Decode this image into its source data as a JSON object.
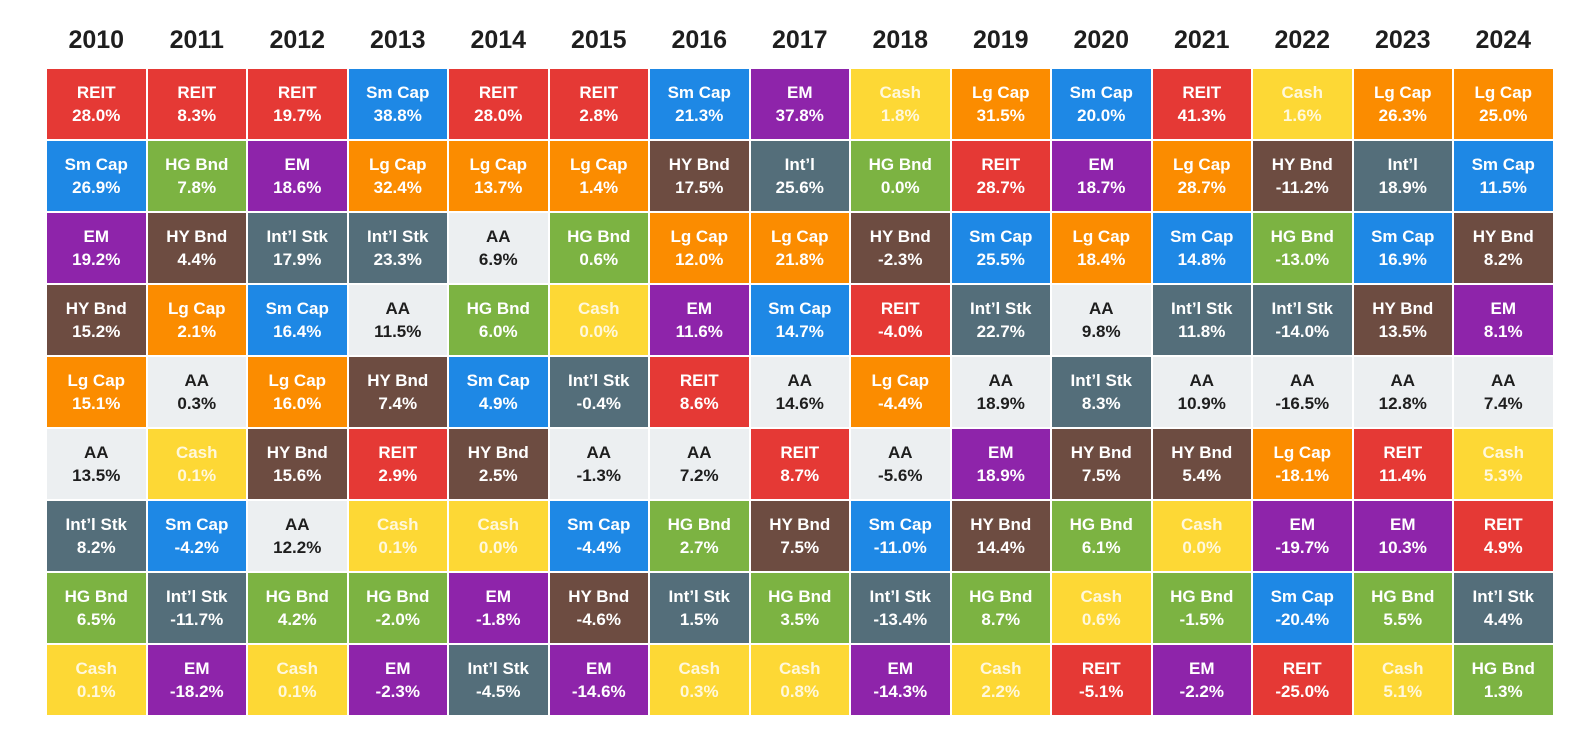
{
  "chart_data": {
    "type": "table",
    "title": "",
    "years": [
      "2010",
      "2011",
      "2012",
      "2013",
      "2014",
      "2015",
      "2016",
      "2017",
      "2018",
      "2019",
      "2020",
      "2021",
      "2022",
      "2023",
      "2024"
    ],
    "colors": {
      "REIT": "#e53935",
      "Sm Cap": "#1e88e5",
      "EM": "#8e24aa",
      "HY Bnd": "#6d4c41",
      "Lg Cap": "#fb8c00",
      "AA": "#eceff1",
      "Int'l Stk": "#546e7a",
      "Int'l": "#546e7a",
      "HG Bnd": "#7cb342",
      "Cash": "#fdd835"
    },
    "light_text_assets": [
      "Cash"
    ],
    "dark_text_assets": [
      "AA"
    ],
    "columns": [
      [
        {
          "asset": "REIT",
          "label": "REIT",
          "value": "28.0%"
        },
        {
          "asset": "Sm Cap",
          "label": "Sm Cap",
          "value": "26.9%"
        },
        {
          "asset": "EM",
          "label": "EM",
          "value": "19.2%"
        },
        {
          "asset": "HY Bnd",
          "label": "HY Bnd",
          "value": "15.2%"
        },
        {
          "asset": "Lg Cap",
          "label": "Lg Cap",
          "value": "15.1%"
        },
        {
          "asset": "AA",
          "label": "AA",
          "value": "13.5%"
        },
        {
          "asset": "Int'l Stk",
          "label": "Int’l Stk",
          "value": "8.2%"
        },
        {
          "asset": "HG Bnd",
          "label": "HG Bnd",
          "value": "6.5%"
        },
        {
          "asset": "Cash",
          "label": "Cash",
          "value": "0.1%"
        }
      ],
      [
        {
          "asset": "REIT",
          "label": "REIT",
          "value": "8.3%"
        },
        {
          "asset": "HG Bnd",
          "label": "HG Bnd",
          "value": "7.8%"
        },
        {
          "asset": "HY Bnd",
          "label": "HY Bnd",
          "value": "4.4%"
        },
        {
          "asset": "Lg Cap",
          "label": "Lg Cap",
          "value": "2.1%"
        },
        {
          "asset": "AA",
          "label": "AA",
          "value": "0.3%"
        },
        {
          "asset": "Cash",
          "label": "Cash",
          "value": "0.1%"
        },
        {
          "asset": "Sm Cap",
          "label": "Sm Cap",
          "value": "-4.2%"
        },
        {
          "asset": "Int'l Stk",
          "label": "Int’l Stk",
          "value": "-11.7%"
        },
        {
          "asset": "EM",
          "label": "EM",
          "value": "-18.2%"
        }
      ],
      [
        {
          "asset": "REIT",
          "label": "REIT",
          "value": "19.7%"
        },
        {
          "asset": "EM",
          "label": "EM",
          "value": "18.6%"
        },
        {
          "asset": "Int'l Stk",
          "label": "Int’l Stk",
          "value": "17.9%"
        },
        {
          "asset": "Sm Cap",
          "label": "Sm Cap",
          "value": "16.4%"
        },
        {
          "asset": "Lg Cap",
          "label": "Lg Cap",
          "value": "16.0%"
        },
        {
          "asset": "HY Bnd",
          "label": "HY Bnd",
          "value": "15.6%"
        },
        {
          "asset": "AA",
          "label": "AA",
          "value": "12.2%"
        },
        {
          "asset": "HG Bnd",
          "label": "HG Bnd",
          "value": "4.2%"
        },
        {
          "asset": "Cash",
          "label": "Cash",
          "value": "0.1%"
        }
      ],
      [
        {
          "asset": "Sm Cap",
          "label": "Sm Cap",
          "value": "38.8%"
        },
        {
          "asset": "Lg Cap",
          "label": "Lg Cap",
          "value": "32.4%"
        },
        {
          "asset": "Int'l Stk",
          "label": "Int’l Stk",
          "value": "23.3%"
        },
        {
          "asset": "AA",
          "label": "AA",
          "value": "11.5%"
        },
        {
          "asset": "HY Bnd",
          "label": "HY Bnd",
          "value": "7.4%"
        },
        {
          "asset": "REIT",
          "label": "REIT",
          "value": "2.9%"
        },
        {
          "asset": "Cash",
          "label": "Cash",
          "value": "0.1%"
        },
        {
          "asset": "HG Bnd",
          "label": "HG Bnd",
          "value": "-2.0%"
        },
        {
          "asset": "EM",
          "label": "EM",
          "value": "-2.3%"
        }
      ],
      [
        {
          "asset": "REIT",
          "label": "REIT",
          "value": "28.0%"
        },
        {
          "asset": "Lg Cap",
          "label": "Lg Cap",
          "value": "13.7%"
        },
        {
          "asset": "AA",
          "label": "AA",
          "value": "6.9%"
        },
        {
          "asset": "HG Bnd",
          "label": "HG Bnd",
          "value": "6.0%"
        },
        {
          "asset": "Sm Cap",
          "label": "Sm Cap",
          "value": "4.9%"
        },
        {
          "asset": "HY Bnd",
          "label": "HY Bnd",
          "value": "2.5%"
        },
        {
          "asset": "Cash",
          "label": "Cash",
          "value": "0.0%"
        },
        {
          "asset": "EM",
          "label": "EM",
          "value": "-1.8%"
        },
        {
          "asset": "Int'l Stk",
          "label": "Int’l Stk",
          "value": "-4.5%"
        }
      ],
      [
        {
          "asset": "REIT",
          "label": "REIT",
          "value": "2.8%"
        },
        {
          "asset": "Lg Cap",
          "label": "Lg Cap",
          "value": "1.4%"
        },
        {
          "asset": "HG Bnd",
          "label": "HG Bnd",
          "value": "0.6%"
        },
        {
          "asset": "Cash",
          "label": "Cash",
          "value": "0.0%"
        },
        {
          "asset": "Int'l Stk",
          "label": "Int’l Stk",
          "value": "-0.4%"
        },
        {
          "asset": "AA",
          "label": "AA",
          "value": "-1.3%"
        },
        {
          "asset": "Sm Cap",
          "label": "Sm Cap",
          "value": "-4.4%"
        },
        {
          "asset": "HY Bnd",
          "label": "HY Bnd",
          "value": "-4.6%"
        },
        {
          "asset": "EM",
          "label": "EM",
          "value": "-14.6%"
        }
      ],
      [
        {
          "asset": "Sm Cap",
          "label": "Sm Cap",
          "value": "21.3%"
        },
        {
          "asset": "HY Bnd",
          "label": "HY Bnd",
          "value": "17.5%"
        },
        {
          "asset": "Lg Cap",
          "label": "Lg Cap",
          "value": "12.0%"
        },
        {
          "asset": "EM",
          "label": "EM",
          "value": "11.6%"
        },
        {
          "asset": "REIT",
          "label": "REIT",
          "value": "8.6%"
        },
        {
          "asset": "AA",
          "label": "AA",
          "value": "7.2%"
        },
        {
          "asset": "HG Bnd",
          "label": "HG Bnd",
          "value": "2.7%"
        },
        {
          "asset": "Int'l Stk",
          "label": "Int’l Stk",
          "value": "1.5%"
        },
        {
          "asset": "Cash",
          "label": "Cash",
          "value": "0.3%"
        }
      ],
      [
        {
          "asset": "EM",
          "label": "EM",
          "value": "37.8%"
        },
        {
          "asset": "Int'l",
          "label": "Int’l",
          "value": "25.6%"
        },
        {
          "asset": "Lg Cap",
          "label": "Lg Cap",
          "value": "21.8%"
        },
        {
          "asset": "Sm Cap",
          "label": "Sm Cap",
          "value": "14.7%"
        },
        {
          "asset": "AA",
          "label": "AA",
          "value": "14.6%"
        },
        {
          "asset": "REIT",
          "label": "REIT",
          "value": "8.7%"
        },
        {
          "asset": "HY Bnd",
          "label": "HY Bnd",
          "value": "7.5%"
        },
        {
          "asset": "HG Bnd",
          "label": "HG Bnd",
          "value": "3.5%"
        },
        {
          "asset": "Cash",
          "label": "Cash",
          "value": "0.8%"
        }
      ],
      [
        {
          "asset": "Cash",
          "label": "Cash",
          "value": "1.8%"
        },
        {
          "asset": "HG Bnd",
          "label": "HG Bnd",
          "value": "0.0%"
        },
        {
          "asset": "HY Bnd",
          "label": "HY Bnd",
          "value": "-2.3%"
        },
        {
          "asset": "REIT",
          "label": "REIT",
          "value": "-4.0%"
        },
        {
          "asset": "Lg Cap",
          "label": "Lg Cap",
          "value": "-4.4%"
        },
        {
          "asset": "AA",
          "label": "AA",
          "value": "-5.6%"
        },
        {
          "asset": "Sm Cap",
          "label": "Sm Cap",
          "value": "-11.0%"
        },
        {
          "asset": "Int'l Stk",
          "label": "Int’l Stk",
          "value": "-13.4%"
        },
        {
          "asset": "EM",
          "label": "EM",
          "value": "-14.3%"
        }
      ],
      [
        {
          "asset": "Lg Cap",
          "label": "Lg Cap",
          "value": "31.5%"
        },
        {
          "asset": "REIT",
          "label": "REIT",
          "value": "28.7%"
        },
        {
          "asset": "Sm Cap",
          "label": "Sm Cap",
          "value": "25.5%"
        },
        {
          "asset": "Int'l Stk",
          "label": "Int’l Stk",
          "value": "22.7%"
        },
        {
          "asset": "AA",
          "label": "AA",
          "value": "18.9%"
        },
        {
          "asset": "EM",
          "label": "EM",
          "value": "18.9%"
        },
        {
          "asset": "HY Bnd",
          "label": "HY Bnd",
          "value": "14.4%"
        },
        {
          "asset": "HG Bnd",
          "label": "HG Bnd",
          "value": "8.7%"
        },
        {
          "asset": "Cash",
          "label": "Cash",
          "value": "2.2%"
        }
      ],
      [
        {
          "asset": "Sm Cap",
          "label": "Sm Cap",
          "value": "20.0%"
        },
        {
          "asset": "EM",
          "label": "EM",
          "value": "18.7%"
        },
        {
          "asset": "Lg Cap",
          "label": "Lg Cap",
          "value": "18.4%"
        },
        {
          "asset": "AA",
          "label": "AA",
          "value": "9.8%"
        },
        {
          "asset": "Int'l Stk",
          "label": "Int’l Stk",
          "value": "8.3%"
        },
        {
          "asset": "HY Bnd",
          "label": "HY Bnd",
          "value": "7.5%"
        },
        {
          "asset": "HG Bnd",
          "label": "HG Bnd",
          "value": "6.1%"
        },
        {
          "asset": "Cash",
          "label": "Cash",
          "value": "0.6%"
        },
        {
          "asset": "REIT",
          "label": "REIT",
          "value": "-5.1%"
        }
      ],
      [
        {
          "asset": "REIT",
          "label": "REIT",
          "value": "41.3%"
        },
        {
          "asset": "Lg Cap",
          "label": "Lg Cap",
          "value": "28.7%"
        },
        {
          "asset": "Sm Cap",
          "label": "Sm Cap",
          "value": "14.8%"
        },
        {
          "asset": "Int'l Stk",
          "label": "Int’l Stk",
          "value": "11.8%"
        },
        {
          "asset": "AA",
          "label": "AA",
          "value": "10.9%"
        },
        {
          "asset": "HY Bnd",
          "label": "HY Bnd",
          "value": "5.4%"
        },
        {
          "asset": "Cash",
          "label": "Cash",
          "value": "0.0%"
        },
        {
          "asset": "HG Bnd",
          "label": "HG Bnd",
          "value": "-1.5%"
        },
        {
          "asset": "EM",
          "label": "EM",
          "value": "-2.2%"
        }
      ],
      [
        {
          "asset": "Cash",
          "label": "Cash",
          "value": "1.6%"
        },
        {
          "asset": "HY Bnd",
          "label": "HY Bnd",
          "value": "-11.2%"
        },
        {
          "asset": "HG Bnd",
          "label": "HG Bnd",
          "value": "-13.0%"
        },
        {
          "asset": "Int'l Stk",
          "label": "Int’l Stk",
          "value": "-14.0%"
        },
        {
          "asset": "AA",
          "label": "AA",
          "value": "-16.5%"
        },
        {
          "asset": "Lg Cap",
          "label": "Lg Cap",
          "value": "-18.1%"
        },
        {
          "asset": "EM",
          "label": "EM",
          "value": "-19.7%"
        },
        {
          "asset": "Sm Cap",
          "label": "Sm Cap",
          "value": "-20.4%"
        },
        {
          "asset": "REIT",
          "label": "REIT",
          "value": "-25.0%"
        }
      ],
      [
        {
          "asset": "Lg Cap",
          "label": "Lg Cap",
          "value": "26.3%"
        },
        {
          "asset": "Int'l",
          "label": "Int’l",
          "value": "18.9%"
        },
        {
          "asset": "Sm Cap",
          "label": "Sm Cap",
          "value": "16.9%"
        },
        {
          "asset": "HY Bnd",
          "label": "HY Bnd",
          "value": "13.5%"
        },
        {
          "asset": "AA",
          "label": "AA",
          "value": "12.8%"
        },
        {
          "asset": "REIT",
          "label": "REIT",
          "value": "11.4%"
        },
        {
          "asset": "EM",
          "label": "EM",
          "value": "10.3%"
        },
        {
          "asset": "HG Bnd",
          "label": "HG Bnd",
          "value": "5.5%"
        },
        {
          "asset": "Cash",
          "label": "Cash",
          "value": "5.1%"
        }
      ],
      [
        {
          "asset": "Lg Cap",
          "label": "Lg Cap",
          "value": "25.0%"
        },
        {
          "asset": "Sm Cap",
          "label": "Sm Cap",
          "value": "11.5%"
        },
        {
          "asset": "HY Bnd",
          "label": "HY Bnd",
          "value": "8.2%"
        },
        {
          "asset": "EM",
          "label": "EM",
          "value": "8.1%"
        },
        {
          "asset": "AA",
          "label": "AA",
          "value": "7.4%"
        },
        {
          "asset": "Cash",
          "label": "Cash",
          "value": "5.3%"
        },
        {
          "asset": "REIT",
          "label": "REIT",
          "value": "4.9%"
        },
        {
          "asset": "Int'l Stk",
          "label": "Int’l Stk",
          "value": "4.4%"
        },
        {
          "asset": "HG Bnd",
          "label": "HG Bnd",
          "value": "1.3%"
        }
      ]
    ]
  }
}
